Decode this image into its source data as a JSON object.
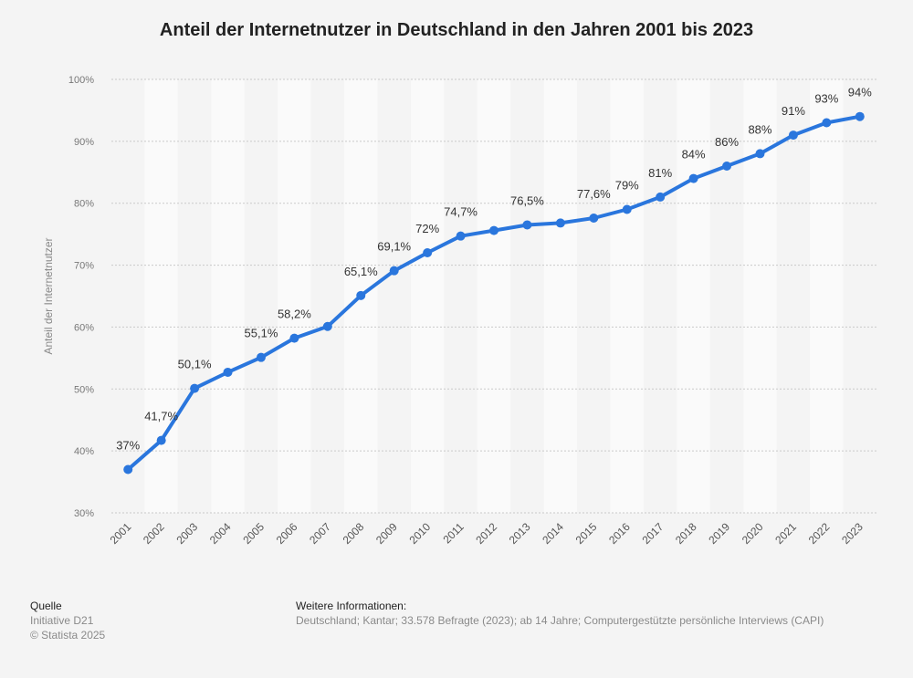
{
  "title": "Anteil der Internetnutzer in Deutschland in den Jahren 2001 bis 2023",
  "chart_data": {
    "type": "line",
    "title": "Anteil der Internetnutzer in Deutschland in den Jahren 2001 bis 2023",
    "xlabel": "",
    "ylabel": "Anteil der Internetnutzer",
    "ylim": [
      30,
      100
    ],
    "yticks": [
      "30%",
      "40%",
      "50%",
      "60%",
      "70%",
      "80%",
      "90%",
      "100%"
    ],
    "grid": true,
    "categories": [
      "2001",
      "2002",
      "2003",
      "2004",
      "2005",
      "2006",
      "2007",
      "2008",
      "2009",
      "2010",
      "2011",
      "2012",
      "2013",
      "2014",
      "2015",
      "2016",
      "2017",
      "2018",
      "2019",
      "2020",
      "2021",
      "2022",
      "2023"
    ],
    "series": [
      {
        "values": [
          37,
          41.7,
          50.1,
          52.7,
          55.1,
          58.2,
          60.1,
          65.1,
          69.1,
          72,
          74.7,
          75.6,
          76.5,
          76.8,
          77.6,
          79,
          81,
          84,
          86,
          88,
          91,
          93,
          94
        ],
        "labels": [
          "37%",
          "41,7%",
          "50,1%",
          "",
          "55,1%",
          "58,2%",
          "",
          "65,1%",
          "69,1%",
          "72%",
          "74,7%",
          "",
          "76,5%",
          "",
          "77,6%",
          "79%",
          "81%",
          "84%",
          "86%",
          "88%",
          "91%",
          "93%",
          "94%"
        ]
      }
    ],
    "line_color": "#2a76dd"
  },
  "footer": {
    "source_title": "Quelle",
    "source_lines": [
      "Initiative D21",
      "© Statista 2025"
    ],
    "info_title": "Weitere Informationen:",
    "info_text": "Deutschland; Kantar; 33.578 Befragte (2023); ab 14 Jahre; Computergestützte persönliche Interviews (CAPI)"
  }
}
